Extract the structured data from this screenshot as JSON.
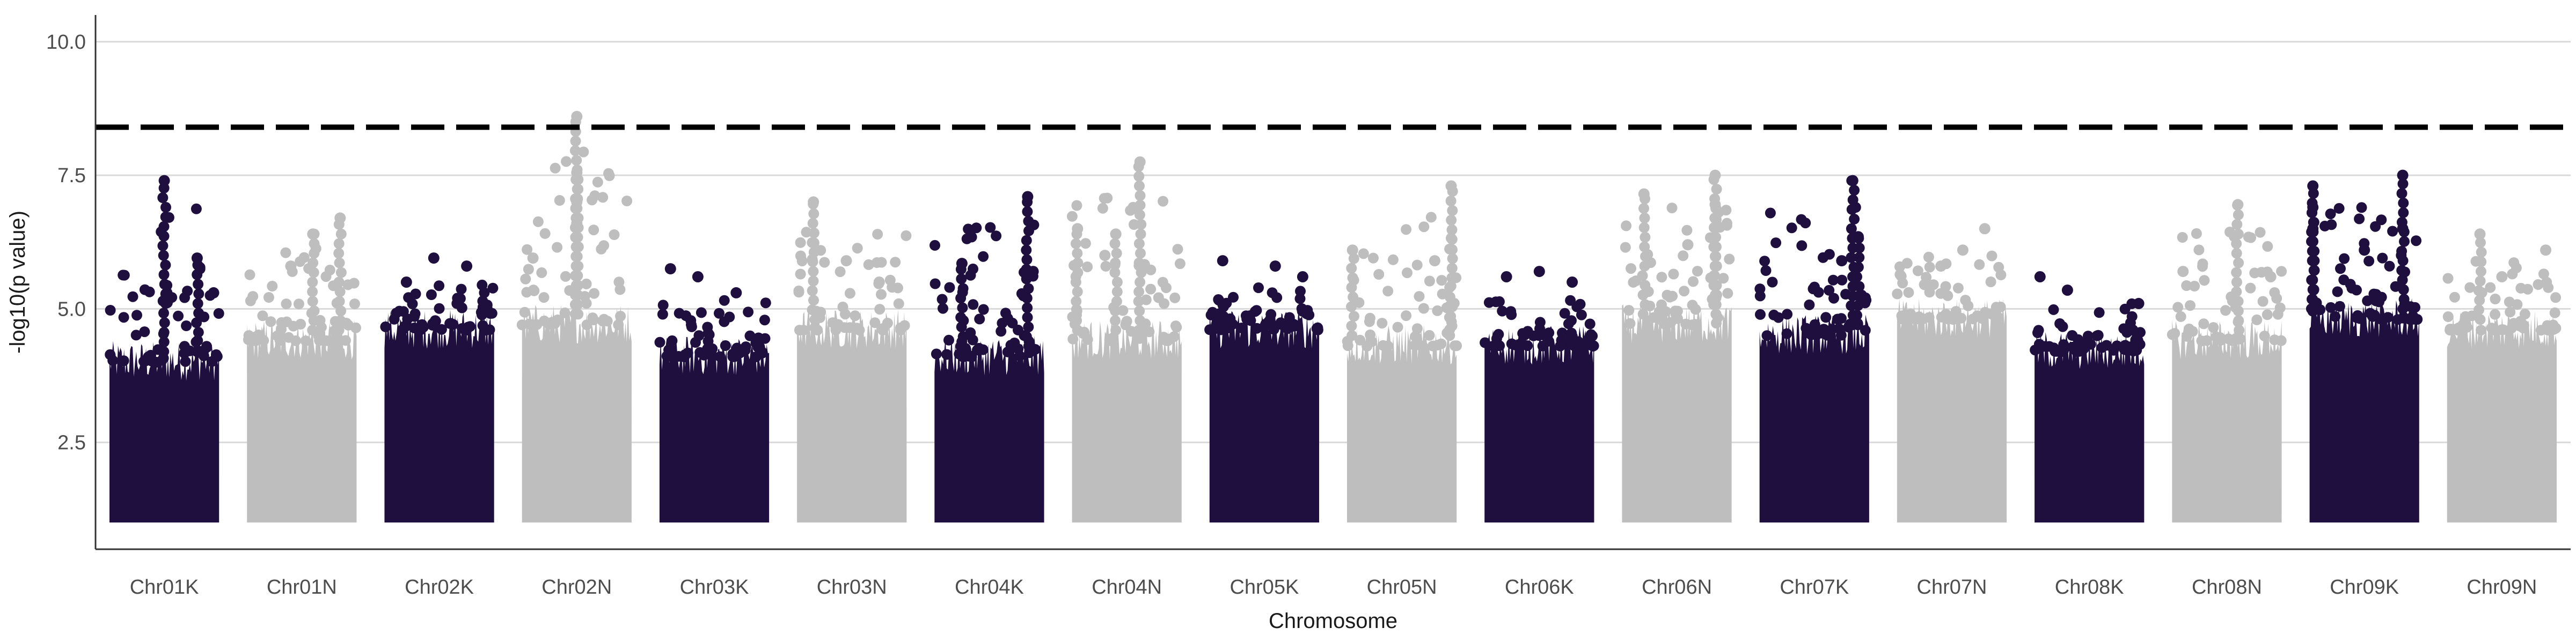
{
  "chart_data": {
    "type": "scatter",
    "subtype": "manhattan",
    "title": "",
    "xlabel": "Chromosome",
    "ylabel": "-log10(p value)",
    "ylim": [
      0.5,
      10.5
    ],
    "yticks": [
      2.5,
      5.0,
      7.5,
      10.0
    ],
    "ytick_labels": [
      "2.5",
      "5.0",
      "7.5",
      "10.0"
    ],
    "grid": "horizontal",
    "significance_threshold": 8.4,
    "threshold_style": "dashed",
    "colors": {
      "dark": "#1e0f3f",
      "light": "#bebebe",
      "threshold": "#000000",
      "grid": "#d9d9d9",
      "axis": "#333333"
    },
    "categories": [
      "Chr01K",
      "Chr01N",
      "Chr02K",
      "Chr02N",
      "Chr03K",
      "Chr03N",
      "Chr04K",
      "Chr04N",
      "Chr05K",
      "Chr05N",
      "Chr06K",
      "Chr06N",
      "Chr07K",
      "Chr07N",
      "Chr08K",
      "Chr08N",
      "Chr09K",
      "Chr09N"
    ],
    "chromosomes": [
      {
        "name": "Chr01K",
        "color": "dark",
        "dense_top": 4.2,
        "max_value": 7.4,
        "peaks": [
          {
            "pos": 0.5,
            "value": 7.4
          },
          {
            "pos": 0.8,
            "value": 5.95
          },
          {
            "pos": 0.95,
            "value": 5.3
          }
        ]
      },
      {
        "name": "Chr01N",
        "color": "light",
        "dense_top": 4.6,
        "max_value": 6.7,
        "peaks": [
          {
            "pos": 0.6,
            "value": 6.4
          },
          {
            "pos": 0.85,
            "value": 6.7
          },
          {
            "pos": 0.4,
            "value": 5.8
          }
        ]
      },
      {
        "name": "Chr02K",
        "color": "dark",
        "dense_top": 4.8,
        "max_value": 5.95,
        "peaks": [
          {
            "pos": 0.45,
            "value": 5.95
          },
          {
            "pos": 0.75,
            "value": 5.8
          },
          {
            "pos": 0.2,
            "value": 5.5
          }
        ]
      },
      {
        "name": "Chr02N",
        "color": "light",
        "dense_top": 4.9,
        "max_value": 8.6,
        "peaks": [
          {
            "pos": 0.5,
            "value": 8.6
          },
          {
            "pos": 0.5,
            "value": 7.55
          },
          {
            "pos": 0.5,
            "value": 7.0
          },
          {
            "pos": 0.5,
            "value": 6.6
          },
          {
            "pos": 0.1,
            "value": 5.95
          }
        ]
      },
      {
        "name": "Chr03K",
        "color": "dark",
        "dense_top": 4.3,
        "max_value": 5.75,
        "peaks": [
          {
            "pos": 0.1,
            "value": 5.75
          },
          {
            "pos": 0.35,
            "value": 5.6
          },
          {
            "pos": 0.7,
            "value": 5.3
          }
        ]
      },
      {
        "name": "Chr03N",
        "color": "light",
        "dense_top": 4.8,
        "max_value": 7.0,
        "peaks": [
          {
            "pos": 0.15,
            "value": 7.0
          },
          {
            "pos": 0.45,
            "value": 5.9
          },
          {
            "pos": 0.75,
            "value": 5.5
          }
        ]
      },
      {
        "name": "Chr04K",
        "color": "dark",
        "dense_top": 4.3,
        "max_value": 7.1,
        "peaks": [
          {
            "pos": 0.85,
            "value": 7.1
          },
          {
            "pos": 0.25,
            "value": 5.85
          },
          {
            "pos": 0.9,
            "value": 5.7
          }
        ]
      },
      {
        "name": "Chr04N",
        "color": "light",
        "dense_top": 4.6,
        "max_value": 7.75,
        "peaks": [
          {
            "pos": 0.62,
            "value": 7.75
          },
          {
            "pos": 0.05,
            "value": 6.5
          },
          {
            "pos": 0.4,
            "value": 6.4
          },
          {
            "pos": 0.3,
            "value": 6.0
          }
        ]
      },
      {
        "name": "Chr05K",
        "color": "dark",
        "dense_top": 4.8,
        "max_value": 5.9,
        "peaks": [
          {
            "pos": 0.12,
            "value": 5.9
          },
          {
            "pos": 0.6,
            "value": 5.8
          },
          {
            "pos": 0.85,
            "value": 5.6
          }
        ]
      },
      {
        "name": "Chr05N",
        "color": "light",
        "dense_top": 4.5,
        "max_value": 7.3,
        "peaks": [
          {
            "pos": 0.95,
            "value": 7.3
          },
          {
            "pos": 0.05,
            "value": 6.1
          },
          {
            "pos": 0.8,
            "value": 5.9
          }
        ]
      },
      {
        "name": "Chr06K",
        "color": "dark",
        "dense_top": 4.5,
        "max_value": 5.7,
        "peaks": [
          {
            "pos": 0.2,
            "value": 5.6
          },
          {
            "pos": 0.5,
            "value": 5.7
          },
          {
            "pos": 0.8,
            "value": 5.5
          }
        ]
      },
      {
        "name": "Chr06N",
        "color": "light",
        "dense_top": 4.9,
        "max_value": 7.5,
        "peaks": [
          {
            "pos": 0.2,
            "value": 7.15
          },
          {
            "pos": 0.85,
            "value": 7.5
          },
          {
            "pos": 0.85,
            "value": 6.95
          },
          {
            "pos": 0.6,
            "value": 6.2
          }
        ]
      },
      {
        "name": "Chr07K",
        "color": "dark",
        "dense_top": 4.7,
        "max_value": 7.4,
        "peaks": [
          {
            "pos": 0.85,
            "value": 7.4
          },
          {
            "pos": 0.9,
            "value": 6.35
          },
          {
            "pos": 0.75,
            "value": 5.9
          }
        ]
      },
      {
        "name": "Chr07N",
        "color": "light",
        "dense_top": 5.0,
        "max_value": 6.5,
        "peaks": [
          {
            "pos": 0.8,
            "value": 6.5
          },
          {
            "pos": 0.6,
            "value": 6.1
          },
          {
            "pos": 0.4,
            "value": 5.8
          }
        ]
      },
      {
        "name": "Chr08K",
        "color": "dark",
        "dense_top": 4.4,
        "max_value": 5.6,
        "peaks": [
          {
            "pos": 0.05,
            "value": 5.6
          },
          {
            "pos": 0.3,
            "value": 5.35
          },
          {
            "pos": 0.95,
            "value": 5.1
          }
        ]
      },
      {
        "name": "Chr08N",
        "color": "light",
        "dense_top": 4.6,
        "max_value": 6.95,
        "peaks": [
          {
            "pos": 0.6,
            "value": 6.95
          },
          {
            "pos": 0.1,
            "value": 5.7
          },
          {
            "pos": 0.9,
            "value": 5.6
          }
        ]
      },
      {
        "name": "Chr09K",
        "color": "dark",
        "dense_top": 5.0,
        "max_value": 7.5,
        "peaks": [
          {
            "pos": 0.03,
            "value": 7.3
          },
          {
            "pos": 0.03,
            "value": 6.9
          },
          {
            "pos": 0.03,
            "value": 6.5
          },
          {
            "pos": 0.85,
            "value": 7.5
          },
          {
            "pos": 0.85,
            "value": 6.5
          },
          {
            "pos": 0.5,
            "value": 6.1
          }
        ]
      },
      {
        "name": "Chr09N",
        "color": "light",
        "dense_top": 4.8,
        "max_value": 6.4,
        "peaks": [
          {
            "pos": 0.3,
            "value": 6.4
          },
          {
            "pos": 0.9,
            "value": 6.1
          },
          {
            "pos": 0.5,
            "value": 5.6
          }
        ]
      }
    ]
  }
}
